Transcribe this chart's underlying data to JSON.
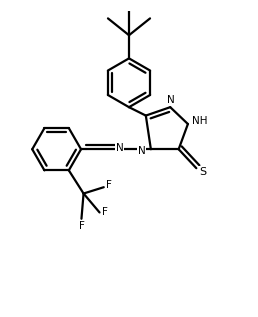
{
  "bg_color": "#ffffff",
  "line_color": "#000000",
  "line_width": 1.6,
  "figsize": [
    2.58,
    3.17
  ],
  "dpi": 100,
  "xlim": [
    -2.5,
    3.5
  ],
  "ylim": [
    -3.8,
    3.2
  ]
}
